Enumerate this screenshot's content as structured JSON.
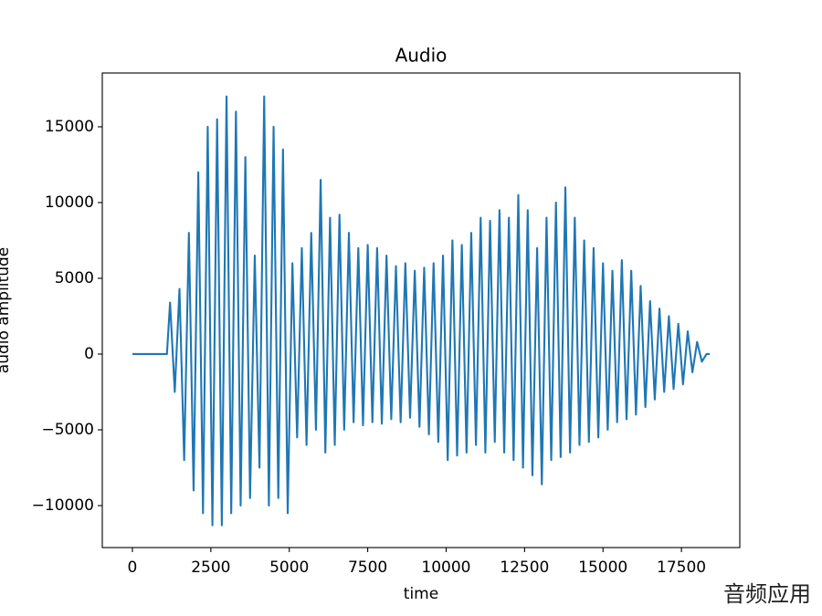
{
  "chart_data": {
    "type": "line",
    "title": "Audio",
    "x_label": "time",
    "y_label": "audio amplitude",
    "watermark": "音频应用",
    "xlim": [
      -960,
      19360
    ],
    "ylim": [
      -12770,
      18550
    ],
    "xticks": [
      0,
      2500,
      5000,
      7500,
      10000,
      12500,
      15000,
      17500
    ],
    "yticks": [
      {
        "value": -10000,
        "label": "−10000"
      },
      {
        "value": -5000,
        "label": "−5000"
      },
      0,
      5000,
      10000,
      15000
    ],
    "series": [
      {
        "name": "audio",
        "color": "#1f77b4",
        "x": [
          0,
          1000,
          1100,
          1200,
          1350,
          1500,
          1650,
          1800,
          1950,
          2100,
          2250,
          2400,
          2550,
          2700,
          2850,
          3000,
          3150,
          3300,
          3450,
          3600,
          3750,
          3900,
          4050,
          4200,
          4350,
          4500,
          4650,
          4800,
          4950,
          5100,
          5250,
          5400,
          5550,
          5700,
          5850,
          6000,
          6150,
          6300,
          6450,
          6600,
          6750,
          6900,
          7050,
          7200,
          7350,
          7500,
          7650,
          7800,
          7950,
          8100,
          8250,
          8400,
          8550,
          8700,
          8850,
          9000,
          9150,
          9300,
          9450,
          9600,
          9750,
          9900,
          10050,
          10200,
          10350,
          10500,
          10650,
          10800,
          10950,
          11100,
          11250,
          11400,
          11550,
          11700,
          11850,
          12000,
          12150,
          12300,
          12450,
          12600,
          12750,
          12900,
          13050,
          13200,
          13350,
          13500,
          13650,
          13800,
          13950,
          14100,
          14250,
          14400,
          14550,
          14700,
          14850,
          15000,
          15150,
          15300,
          15450,
          15600,
          15750,
          15900,
          16050,
          16200,
          16350,
          16500,
          16650,
          16800,
          16950,
          17100,
          17250,
          17400,
          17550,
          17700,
          17850,
          18000,
          18150,
          18300,
          18400
        ],
        "values": [
          0,
          0,
          0,
          3400,
          -2500,
          4300,
          -7000,
          8000,
          -9000,
          12000,
          -10500,
          15000,
          -11300,
          15500,
          -11300,
          17000,
          -10500,
          16000,
          -10000,
          13000,
          -9500,
          6500,
          -7500,
          17000,
          -10000,
          15000,
          -9500,
          13500,
          -10500,
          6000,
          -5500,
          7000,
          -6000,
          8000,
          -5000,
          11500,
          -6500,
          9000,
          -6000,
          9200,
          -5000,
          8000,
          -4500,
          7000,
          -4700,
          7200,
          -4500,
          7000,
          -4600,
          6500,
          -4300,
          5800,
          -4500,
          6000,
          -4200,
          5500,
          -4800,
          5700,
          -5300,
          6000,
          -5800,
          6500,
          -7000,
          7500,
          -6700,
          7200,
          -6500,
          8000,
          -6000,
          9000,
          -6500,
          8800,
          -5800,
          9500,
          -6500,
          9000,
          -7000,
          10500,
          -7500,
          9500,
          -8000,
          7000,
          -8600,
          9000,
          -7000,
          10000,
          -6800,
          11000,
          -6500,
          9000,
          -6000,
          7500,
          -5800,
          7000,
          -5500,
          6000,
          -5000,
          5500,
          -4500,
          6200,
          -4300,
          5500,
          -4000,
          4500,
          -3500,
          3500,
          -3000,
          3000,
          -2500,
          2500,
          -2300,
          2000,
          -2000,
          1500,
          -1200,
          800,
          -500,
          0,
          0
        ]
      }
    ]
  }
}
